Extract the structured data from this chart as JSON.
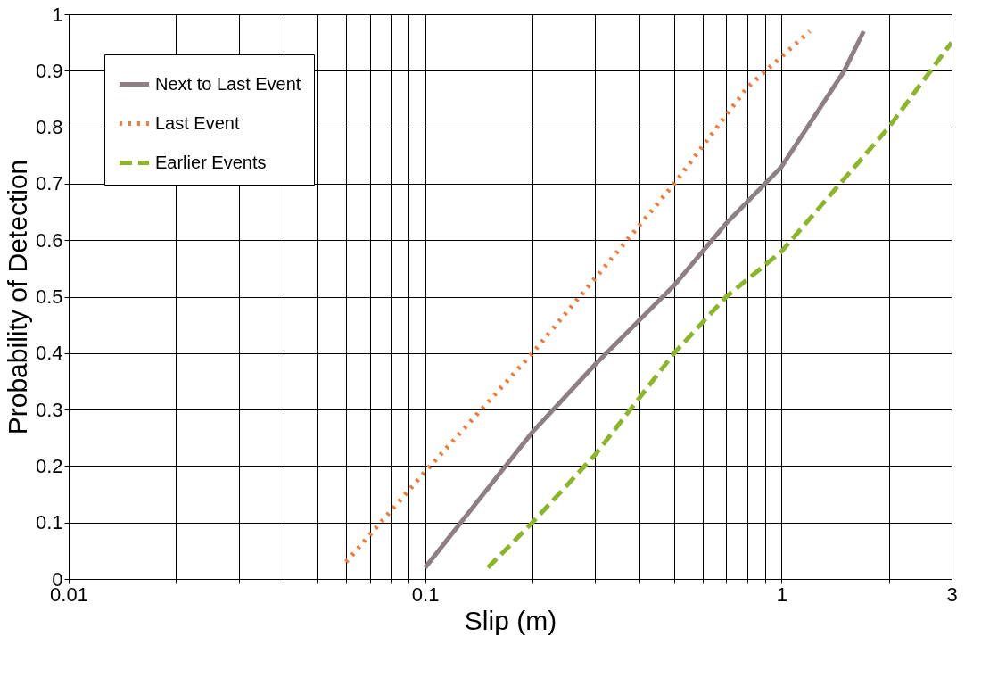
{
  "chart_data": {
    "type": "line",
    "xlabel": "Slip (m)",
    "ylabel": "Probability of Detection",
    "log": "x",
    "grid": true,
    "legend": "top left",
    "marker": "none",
    "xlim": [
      0.01,
      3
    ],
    "ylim": [
      0,
      1
    ],
    "xticks": [
      0.01,
      {
        "value": 0.02,
        "label": null
      },
      {
        "value": 0.03,
        "label": null
      },
      {
        "value": 0.04,
        "label": null
      },
      {
        "value": 0.05,
        "label": null
      },
      {
        "value": 0.06,
        "label": null
      },
      {
        "value": 0.07,
        "label": null
      },
      {
        "value": 0.08,
        "label": null
      },
      {
        "value": 0.09,
        "label": null
      },
      0.1,
      {
        "value": 0.2,
        "label": null
      },
      {
        "value": 0.3,
        "label": null
      },
      {
        "value": 0.4,
        "label": null
      },
      {
        "value": 0.5,
        "label": null
      },
      {
        "value": 0.6,
        "label": null
      },
      {
        "value": 0.7,
        "label": null
      },
      {
        "value": 0.8,
        "label": null
      },
      {
        "value": 0.9,
        "label": null
      },
      1,
      {
        "value": 2,
        "label": null
      },
      3
    ],
    "yticks": [
      0,
      0.1,
      0.2,
      0.3,
      0.4,
      0.5,
      0.6,
      0.7,
      0.8,
      0.9,
      1
    ],
    "series": [
      {
        "name": "Next to Last Event",
        "color": "#8e7f86",
        "line_style": "solid",
        "x": [
          0.1,
          0.2,
          0.3,
          0.5,
          0.7,
          1,
          1.5,
          1.7
        ],
        "values": [
          0.02,
          0.26,
          0.38,
          0.52,
          0.63,
          0.73,
          0.9,
          0.97
        ]
      },
      {
        "name": "Last Event",
        "color": "#f07a3a",
        "line_style": "dotted",
        "x": [
          0.06,
          0.1,
          0.2,
          0.5,
          0.8,
          1.2
        ],
        "values": [
          0.03,
          0.19,
          0.4,
          0.7,
          0.87,
          0.97
        ]
      },
      {
        "name": "Earlier Events",
        "color": "#8db52a",
        "line_style": "dashed",
        "x": [
          0.15,
          0.2,
          0.3,
          0.5,
          0.7,
          1,
          2,
          3
        ],
        "values": [
          0.02,
          0.1,
          0.22,
          0.4,
          0.5,
          0.58,
          0.8,
          0.95
        ]
      }
    ]
  }
}
